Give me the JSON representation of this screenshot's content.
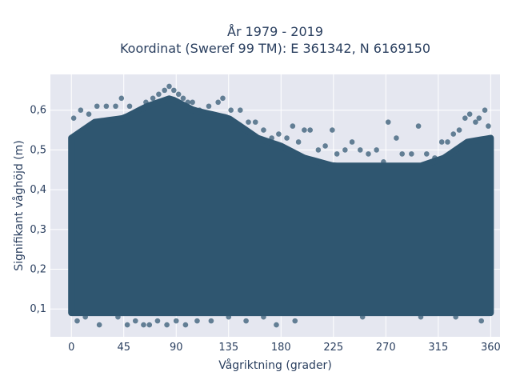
{
  "chart_data": {
    "type": "scatter",
    "title_line1": "År 1979 - 2019",
    "title_line2": "Koordinat (Sweref 99 TM): E 361342, N 6169150",
    "xlabel": "Vågriktning (grader)",
    "ylabel": "Signifikant våghöjd (m)",
    "xlim": [
      -18,
      368
    ],
    "ylim": [
      0.03,
      0.69
    ],
    "xticks": [
      0,
      45,
      90,
      135,
      180,
      225,
      270,
      315,
      360
    ],
    "xtick_labels": [
      "0",
      "45",
      "90",
      "135",
      "180",
      "225",
      "270",
      "315",
      "360"
    ],
    "yticks": [
      0.1,
      0.2,
      0.3,
      0.4,
      0.5,
      0.6
    ],
    "ytick_labels": [
      "0,1",
      "0,2",
      "0,3",
      "0,4",
      "0,5",
      "0,6"
    ],
    "grid": true,
    "legend": false,
    "marker_color": "#2f5670",
    "plot_background": "#e5e7f0",
    "dense_band": {
      "direction_range": [
        0,
        360
      ],
      "height_min": 0.09,
      "upper_envelope": [
        {
          "x": 0,
          "y": 0.53
        },
        {
          "x": 20,
          "y": 0.57
        },
        {
          "x": 45,
          "y": 0.58
        },
        {
          "x": 65,
          "y": 0.61
        },
        {
          "x": 85,
          "y": 0.63
        },
        {
          "x": 105,
          "y": 0.6
        },
        {
          "x": 135,
          "y": 0.58
        },
        {
          "x": 160,
          "y": 0.53
        },
        {
          "x": 180,
          "y": 0.51
        },
        {
          "x": 200,
          "y": 0.48
        },
        {
          "x": 225,
          "y": 0.46
        },
        {
          "x": 250,
          "y": 0.46
        },
        {
          "x": 270,
          "y": 0.46
        },
        {
          "x": 300,
          "y": 0.46
        },
        {
          "x": 320,
          "y": 0.48
        },
        {
          "x": 340,
          "y": 0.52
        },
        {
          "x": 360,
          "y": 0.53
        }
      ]
    },
    "points": [
      {
        "x": 2,
        "y": 0.58
      },
      {
        "x": 8,
        "y": 0.6
      },
      {
        "x": 15,
        "y": 0.59
      },
      {
        "x": 22,
        "y": 0.61
      },
      {
        "x": 30,
        "y": 0.61
      },
      {
        "x": 38,
        "y": 0.61
      },
      {
        "x": 43,
        "y": 0.63
      },
      {
        "x": 50,
        "y": 0.61
      },
      {
        "x": 58,
        "y": 0.6
      },
      {
        "x": 64,
        "y": 0.62
      },
      {
        "x": 70,
        "y": 0.63
      },
      {
        "x": 75,
        "y": 0.64
      },
      {
        "x": 80,
        "y": 0.65
      },
      {
        "x": 84,
        "y": 0.66
      },
      {
        "x": 88,
        "y": 0.65
      },
      {
        "x": 92,
        "y": 0.64
      },
      {
        "x": 96,
        "y": 0.63
      },
      {
        "x": 100,
        "y": 0.62
      },
      {
        "x": 104,
        "y": 0.62
      },
      {
        "x": 110,
        "y": 0.6
      },
      {
        "x": 118,
        "y": 0.61
      },
      {
        "x": 126,
        "y": 0.62
      },
      {
        "x": 130,
        "y": 0.63
      },
      {
        "x": 137,
        "y": 0.6
      },
      {
        "x": 145,
        "y": 0.6
      },
      {
        "x": 152,
        "y": 0.57
      },
      {
        "x": 158,
        "y": 0.57
      },
      {
        "x": 165,
        "y": 0.55
      },
      {
        "x": 172,
        "y": 0.53
      },
      {
        "x": 178,
        "y": 0.54
      },
      {
        "x": 185,
        "y": 0.53
      },
      {
        "x": 190,
        "y": 0.56
      },
      {
        "x": 195,
        "y": 0.52
      },
      {
        "x": 200,
        "y": 0.55
      },
      {
        "x": 205,
        "y": 0.55
      },
      {
        "x": 212,
        "y": 0.5
      },
      {
        "x": 218,
        "y": 0.51
      },
      {
        "x": 224,
        "y": 0.55
      },
      {
        "x": 228,
        "y": 0.49
      },
      {
        "x": 235,
        "y": 0.5
      },
      {
        "x": 241,
        "y": 0.52
      },
      {
        "x": 248,
        "y": 0.5
      },
      {
        "x": 255,
        "y": 0.49
      },
      {
        "x": 262,
        "y": 0.5
      },
      {
        "x": 268,
        "y": 0.47
      },
      {
        "x": 272,
        "y": 0.57
      },
      {
        "x": 279,
        "y": 0.53
      },
      {
        "x": 284,
        "y": 0.49
      },
      {
        "x": 292,
        "y": 0.49
      },
      {
        "x": 298,
        "y": 0.56
      },
      {
        "x": 305,
        "y": 0.49
      },
      {
        "x": 312,
        "y": 0.48
      },
      {
        "x": 318,
        "y": 0.52
      },
      {
        "x": 323,
        "y": 0.52
      },
      {
        "x": 328,
        "y": 0.54
      },
      {
        "x": 333,
        "y": 0.55
      },
      {
        "x": 338,
        "y": 0.58
      },
      {
        "x": 342,
        "y": 0.59
      },
      {
        "x": 347,
        "y": 0.57
      },
      {
        "x": 350,
        "y": 0.58
      },
      {
        "x": 355,
        "y": 0.6
      },
      {
        "x": 358,
        "y": 0.56
      },
      {
        "x": 5,
        "y": 0.07
      },
      {
        "x": 12,
        "y": 0.08
      },
      {
        "x": 24,
        "y": 0.06
      },
      {
        "x": 40,
        "y": 0.08
      },
      {
        "x": 48,
        "y": 0.06
      },
      {
        "x": 55,
        "y": 0.07
      },
      {
        "x": 62,
        "y": 0.06
      },
      {
        "x": 67,
        "y": 0.06
      },
      {
        "x": 74,
        "y": 0.07
      },
      {
        "x": 82,
        "y": 0.06
      },
      {
        "x": 90,
        "y": 0.07
      },
      {
        "x": 98,
        "y": 0.06
      },
      {
        "x": 108,
        "y": 0.07
      },
      {
        "x": 120,
        "y": 0.07
      },
      {
        "x": 135,
        "y": 0.08
      },
      {
        "x": 150,
        "y": 0.07
      },
      {
        "x": 165,
        "y": 0.08
      },
      {
        "x": 176,
        "y": 0.06
      },
      {
        "x": 192,
        "y": 0.07
      },
      {
        "x": 250,
        "y": 0.08
      },
      {
        "x": 300,
        "y": 0.08
      },
      {
        "x": 330,
        "y": 0.08
      },
      {
        "x": 352,
        "y": 0.07
      }
    ]
  }
}
